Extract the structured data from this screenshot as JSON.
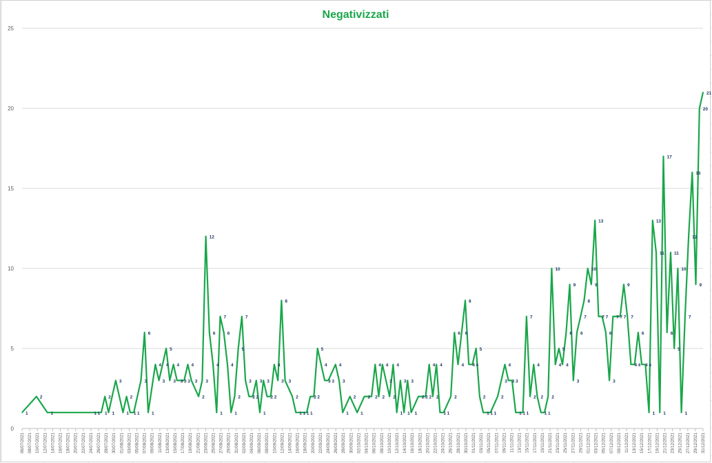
{
  "chart_data": {
    "type": "line",
    "title": "Negativizzati",
    "xlabel": "",
    "ylabel": "",
    "ylim": [
      0,
      25
    ],
    "yticks": [
      0,
      5,
      10,
      15,
      20,
      25
    ],
    "grid": true,
    "legend": "none",
    "colors": {
      "line": "#1aa64a",
      "labels": "#1f3864",
      "title": "#1aa64a",
      "grid": "#d9d9d9"
    },
    "xtick_labels": [
      "06/07/2021",
      "08/07/2021",
      "10/07/2021",
      "12/07/2021",
      "14/07/2021",
      "16/07/2021",
      "18/07/2021",
      "20/07/2021",
      "22/07/2021",
      "24/07/2021",
      "26/07/2021",
      "28/07/2021",
      "30/07/2021",
      "01/08/2021",
      "03/08/2021",
      "05/08/2021",
      "07/08/2021",
      "09/08/2021",
      "11/08/2021",
      "13/08/2021",
      "15/08/2021",
      "17/08/2021",
      "19/08/2021",
      "21/08/2021",
      "23/08/2021",
      "25/08/2021",
      "27/08/2021",
      "29/08/2021",
      "31/08/2021",
      "02/09/2021",
      "04/09/2021",
      "06/09/2021",
      "08/09/2021",
      "10/09/2021",
      "12/09/2021",
      "14/09/2021",
      "16/09/2021",
      "18/09/2021",
      "20/09/2021",
      "22/09/2021",
      "24/09/2021",
      "26/09/2021",
      "28/09/2021",
      "30/09/2021",
      "02/10/2021",
      "04/10/2021",
      "06/10/2021",
      "08/10/2021",
      "10/10/2021",
      "12/10/2021",
      "14/10/2021",
      "16/10/2021",
      "18/10/2021",
      "20/10/2021",
      "22/10/2021",
      "24/10/2021",
      "26/10/2021",
      "28/10/2021",
      "30/10/2021",
      "01/11/2021",
      "03/11/2021",
      "05/11/2021",
      "07/11/2021",
      "09/11/2021",
      "11/11/2021",
      "13/11/2021",
      "15/11/2021",
      "17/11/2021",
      "19/11/2021",
      "21/11/2021",
      "23/11/2021",
      "25/11/2021",
      "27/11/2021",
      "29/11/2021",
      "01/12/2021",
      "03/12/2021",
      "05/12/2021",
      "07/12/2021",
      "09/12/2021",
      "11/12/2021",
      "13/12/2021",
      "15/12/2021",
      "17/12/2021",
      "19/12/2021",
      "21/12/2021",
      "23/12/2021",
      "25/12/2021",
      "27/12/2021",
      "29/12/2021",
      "31/12/2021"
    ],
    "series": [
      {
        "points": [
          {
            "x": 0,
            "y": 1,
            "label": "1"
          },
          {
            "x": 4,
            "y": 2,
            "label": "2"
          },
          {
            "x": 7,
            "y": 1,
            "label": "1"
          },
          {
            "x": 19,
            "y": 1,
            "label": "1"
          },
          {
            "x": 20,
            "y": 1,
            "label": "1"
          },
          {
            "x": 22,
            "y": 1,
            "label": "1"
          },
          {
            "x": 23,
            "y": 2,
            "label": "2"
          },
          {
            "x": 24,
            "y": 1,
            "label": "1"
          },
          {
            "x": 26,
            "y": 3,
            "label": "3"
          },
          {
            "x": 28,
            "y": 1,
            "label": "1"
          },
          {
            "x": 29,
            "y": 2,
            "label": "2"
          },
          {
            "x": 30,
            "y": 1,
            "label": "1"
          },
          {
            "x": 31,
            "y": 1,
            "label": "1"
          },
          {
            "x": 33,
            "y": 3,
            "label": "3"
          },
          {
            "x": 34,
            "y": 6,
            "label": "6"
          },
          {
            "x": 35,
            "y": 1,
            "label": "1"
          },
          {
            "x": 37,
            "y": 4,
            "label": "4"
          },
          {
            "x": 38,
            "y": 3,
            "label": "3"
          },
          {
            "x": 39,
            "y": 4,
            "label": "4"
          },
          {
            "x": 40,
            "y": 5,
            "label": "5"
          },
          {
            "x": 41,
            "y": 3,
            "label": "3"
          },
          {
            "x": 42,
            "y": 4,
            "label": "4"
          },
          {
            "x": 43,
            "y": 3,
            "label": "3"
          },
          {
            "x": 44,
            "y": 3,
            "label": "3"
          },
          {
            "x": 45,
            "y": 3,
            "label": "3"
          },
          {
            "x": 46,
            "y": 4,
            "label": "4"
          },
          {
            "x": 47,
            "y": 3,
            "label": "3"
          },
          {
            "x": 49,
            "y": 2,
            "label": "2"
          },
          {
            "x": 50,
            "y": 3,
            "label": "3"
          },
          {
            "x": 51,
            "y": 12,
            "label": "12"
          },
          {
            "x": 52,
            "y": 6,
            "label": "6"
          },
          {
            "x": 53,
            "y": 4,
            "label": "4"
          },
          {
            "x": 54,
            "y": 1,
            "label": "1"
          },
          {
            "x": 55,
            "y": 7,
            "label": "7"
          },
          {
            "x": 56,
            "y": 6,
            "label": "6"
          },
          {
            "x": 57,
            "y": 4,
            "label": "4"
          },
          {
            "x": 58,
            "y": 1,
            "label": "1"
          },
          {
            "x": 59,
            "y": 2,
            "label": "2"
          },
          {
            "x": 60,
            "y": 5,
            "label": "5"
          },
          {
            "x": 61,
            "y": 7,
            "label": "7"
          },
          {
            "x": 62,
            "y": 3,
            "label": "3"
          },
          {
            "x": 63,
            "y": 2,
            "label": "2"
          },
          {
            "x": 64,
            "y": 2,
            "label": "2"
          },
          {
            "x": 65,
            "y": 3,
            "label": "3"
          },
          {
            "x": 66,
            "y": 1,
            "label": "1"
          },
          {
            "x": 67,
            "y": 3,
            "label": "3"
          },
          {
            "x": 68,
            "y": 2,
            "label": "2"
          },
          {
            "x": 69,
            "y": 2,
            "label": "2"
          },
          {
            "x": 70,
            "y": 4,
            "label": "4"
          },
          {
            "x": 71,
            "y": 3,
            "label": "3"
          },
          {
            "x": 72,
            "y": 8,
            "label": "8"
          },
          {
            "x": 73,
            "y": 3,
            "label": "3"
          },
          {
            "x": 75,
            "y": 2,
            "label": "2"
          },
          {
            "x": 76,
            "y": 1,
            "label": "1"
          },
          {
            "x": 77,
            "y": 1,
            "label": "1"
          },
          {
            "x": 78,
            "y": 1,
            "label": "1"
          },
          {
            "x": 79,
            "y": 1,
            "label": "1"
          },
          {
            "x": 80,
            "y": 2,
            "label": "2"
          },
          {
            "x": 81,
            "y": 2,
            "label": "2"
          },
          {
            "x": 82,
            "y": 5,
            "label": "5"
          },
          {
            "x": 83,
            "y": 4,
            "label": "4"
          },
          {
            "x": 84,
            "y": 3,
            "label": "3"
          },
          {
            "x": 85,
            "y": 3,
            "label": "3"
          },
          {
            "x": 87,
            "y": 4,
            "label": "4"
          },
          {
            "x": 88,
            "y": 3,
            "label": "3"
          },
          {
            "x": 89,
            "y": 1,
            "label": "1"
          },
          {
            "x": 91,
            "y": 2,
            "label": "2"
          },
          {
            "x": 93,
            "y": 1,
            "label": "1"
          },
          {
            "x": 95,
            "y": 2,
            "label": "2"
          },
          {
            "x": 97,
            "y": 2,
            "label": "2"
          },
          {
            "x": 98,
            "y": 4,
            "label": "4"
          },
          {
            "x": 99,
            "y": 2,
            "label": "2"
          },
          {
            "x": 100,
            "y": 4,
            "label": "4"
          },
          {
            "x": 101,
            "y": 3,
            "label": "3"
          },
          {
            "x": 102,
            "y": 2,
            "label": "2"
          },
          {
            "x": 103,
            "y": 4,
            "label": "4"
          },
          {
            "x": 104,
            "y": 1,
            "label": "1"
          },
          {
            "x": 105,
            "y": 3,
            "label": "3"
          },
          {
            "x": 106,
            "y": 1,
            "label": "1"
          },
          {
            "x": 107,
            "y": 3,
            "label": "3"
          },
          {
            "x": 108,
            "y": 1,
            "label": "1"
          },
          {
            "x": 110,
            "y": 2,
            "label": "2"
          },
          {
            "x": 111,
            "y": 2,
            "label": "2"
          },
          {
            "x": 112,
            "y": 2,
            "label": "2"
          },
          {
            "x": 113,
            "y": 4,
            "label": "4"
          },
          {
            "x": 114,
            "y": 2,
            "label": "2"
          },
          {
            "x": 115,
            "y": 4,
            "label": "4"
          },
          {
            "x": 116,
            "y": 1,
            "label": "1"
          },
          {
            "x": 117,
            "y": 1,
            "label": "1"
          },
          {
            "x": 119,
            "y": 2,
            "label": "2"
          },
          {
            "x": 120,
            "y": 6,
            "label": "6"
          },
          {
            "x": 121,
            "y": 4,
            "label": "4"
          },
          {
            "x": 122,
            "y": 6,
            "label": "6"
          },
          {
            "x": 123,
            "y": 8,
            "label": "8"
          },
          {
            "x": 124,
            "y": 4,
            "label": "4"
          },
          {
            "x": 125,
            "y": 4,
            "label": "4"
          },
          {
            "x": 126,
            "y": 5,
            "label": "5"
          },
          {
            "x": 127,
            "y": 2,
            "label": "2"
          },
          {
            "x": 128,
            "y": 1,
            "label": "1"
          },
          {
            "x": 129,
            "y": 1,
            "label": "1"
          },
          {
            "x": 130,
            "y": 1,
            "label": "1"
          },
          {
            "x": 132,
            "y": 2,
            "label": "2"
          },
          {
            "x": 133,
            "y": 3,
            "label": "3"
          },
          {
            "x": 134,
            "y": 4,
            "label": "4"
          },
          {
            "x": 135,
            "y": 3,
            "label": "3"
          },
          {
            "x": 136,
            "y": 3,
            "label": "3"
          },
          {
            "x": 137,
            "y": 1,
            "label": "1"
          },
          {
            "x": 138,
            "y": 1,
            "label": "1"
          },
          {
            "x": 139,
            "y": 1,
            "label": "1"
          },
          {
            "x": 140,
            "y": 7,
            "label": "7"
          },
          {
            "x": 141,
            "y": 2,
            "label": "2"
          },
          {
            "x": 142,
            "y": 4,
            "label": "4"
          },
          {
            "x": 143,
            "y": 2,
            "label": "2"
          },
          {
            "x": 144,
            "y": 1,
            "label": "1"
          },
          {
            "x": 145,
            "y": 1,
            "label": "1"
          },
          {
            "x": 146,
            "y": 2,
            "label": "2"
          },
          {
            "x": 147,
            "y": 10,
            "label": "10"
          },
          {
            "x": 148,
            "y": 4,
            "label": "4"
          },
          {
            "x": 149,
            "y": 5,
            "label": "5"
          },
          {
            "x": 150,
            "y": 4,
            "label": "4"
          },
          {
            "x": 151,
            "y": 6,
            "label": "6"
          },
          {
            "x": 152,
            "y": 9,
            "label": "9"
          },
          {
            "x": 153,
            "y": 3,
            "label": "3"
          },
          {
            "x": 154,
            "y": 6,
            "label": "6"
          },
          {
            "x": 155,
            "y": 7,
            "label": "7"
          },
          {
            "x": 156,
            "y": 8,
            "label": "8"
          },
          {
            "x": 157,
            "y": 10,
            "label": "10"
          },
          {
            "x": 158,
            "y": 9,
            "label": "9"
          },
          {
            "x": 159,
            "y": 13,
            "label": "13"
          },
          {
            "x": 160,
            "y": 7,
            "label": "7"
          },
          {
            "x": 161,
            "y": 7,
            "label": "7"
          },
          {
            "x": 162,
            "y": 6,
            "label": "6"
          },
          {
            "x": 163,
            "y": 3,
            "label": "3"
          },
          {
            "x": 164,
            "y": 7,
            "label": "7"
          },
          {
            "x": 165,
            "y": 7,
            "label": "7"
          },
          {
            "x": 166,
            "y": 7,
            "label": "7"
          },
          {
            "x": 167,
            "y": 9,
            "label": "9"
          },
          {
            "x": 168,
            "y": 7,
            "label": "7"
          },
          {
            "x": 169,
            "y": 4,
            "label": "4"
          },
          {
            "x": 170,
            "y": 4,
            "label": "4"
          },
          {
            "x": 171,
            "y": 6,
            "label": "6"
          },
          {
            "x": 172,
            "y": 4,
            "label": "4"
          },
          {
            "x": 173,
            "y": 4,
            "label": "4"
          },
          {
            "x": 174,
            "y": 1,
            "label": "1"
          },
          {
            "x": 175,
            "y": 13,
            "label": "13"
          },
          {
            "x": 176,
            "y": 11,
            "label": "11"
          },
          {
            "x": 177,
            "y": 1,
            "label": "1"
          },
          {
            "x": 178,
            "y": 17,
            "label": "17"
          },
          {
            "x": 179,
            "y": 6,
            "label": "6"
          },
          {
            "x": 180,
            "y": 11,
            "label": "11"
          },
          {
            "x": 181,
            "y": 5,
            "label": "5"
          },
          {
            "x": 182,
            "y": 10,
            "label": "10"
          },
          {
            "x": 183,
            "y": 1,
            "label": "1"
          },
          {
            "x": 184,
            "y": 7,
            "label": "7"
          },
          {
            "x": 185,
            "y": 12,
            "label": "12"
          },
          {
            "x": 186,
            "y": 16,
            "label": "16"
          },
          {
            "x": 187,
            "y": 9,
            "label": "9"
          },
          {
            "x": 188,
            "y": 20,
            "label": "20"
          },
          {
            "x": 189,
            "y": 21,
            "label": "21"
          }
        ]
      }
    ]
  }
}
